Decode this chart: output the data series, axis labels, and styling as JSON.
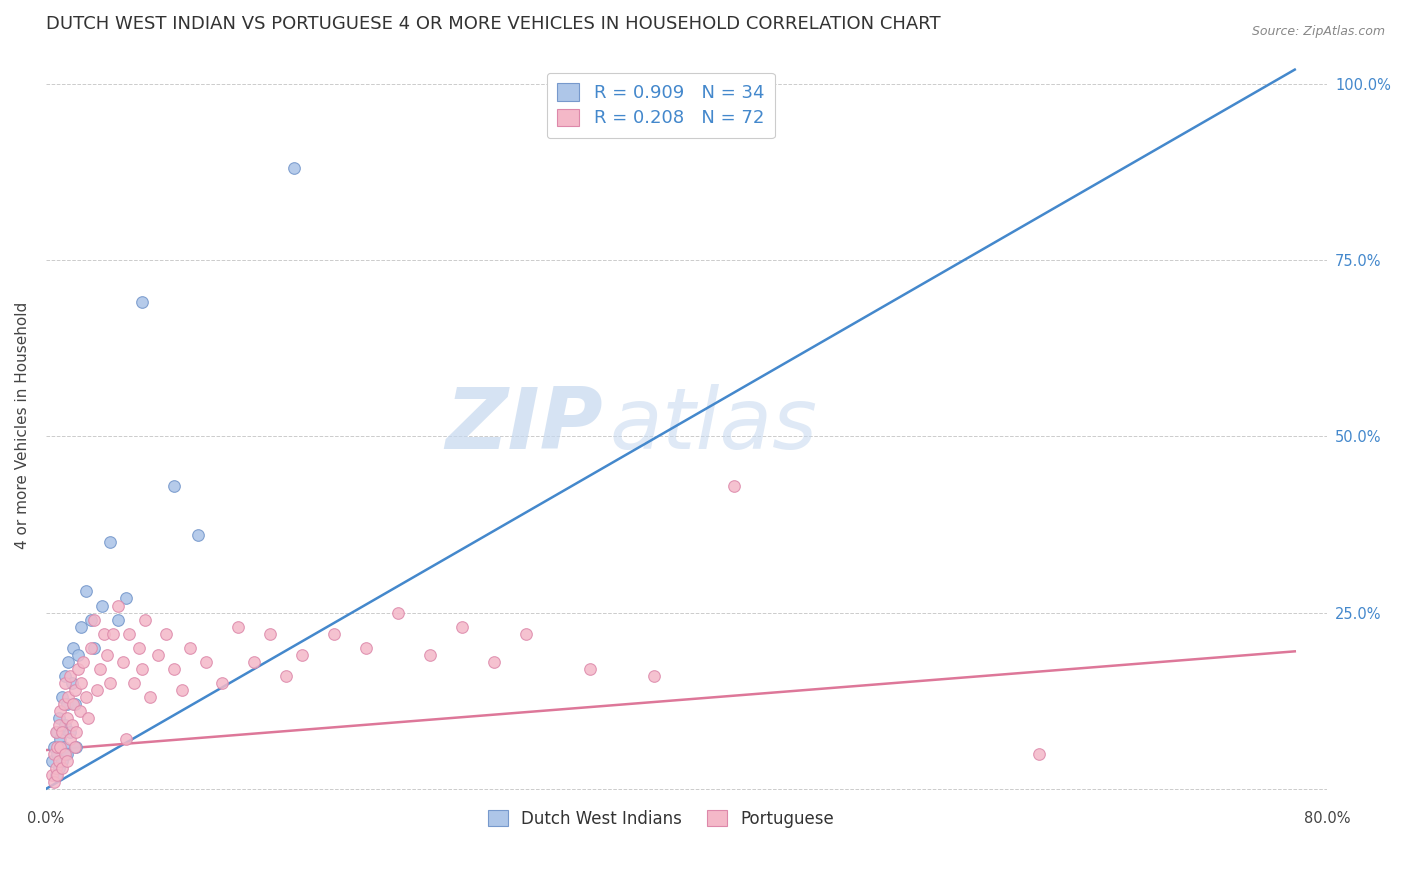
{
  "title": "DUTCH WEST INDIAN VS PORTUGUESE 4 OR MORE VEHICLES IN HOUSEHOLD CORRELATION CHART",
  "source": "Source: ZipAtlas.com",
  "ylabel": "4 or more Vehicles in Household",
  "xlim": [
    0.0,
    0.8
  ],
  "ylim": [
    -0.02,
    1.05
  ],
  "x_tick_positions": [
    0.0,
    0.1,
    0.2,
    0.3,
    0.4,
    0.5,
    0.6,
    0.7,
    0.8
  ],
  "x_tick_labels": [
    "0.0%",
    "",
    "",
    "",
    "",
    "",
    "",
    "",
    "80.0%"
  ],
  "y_tick_positions": [
    0.0,
    0.25,
    0.5,
    0.75,
    1.0
  ],
  "y_tick_labels_right": [
    "",
    "25.0%",
    "50.0%",
    "75.0%",
    "100.0%"
  ],
  "blue_line": {
    "x": [
      0.0,
      0.78
    ],
    "y": [
      0.0,
      1.02
    ]
  },
  "pink_line": {
    "x": [
      0.0,
      0.78
    ],
    "y": [
      0.055,
      0.195
    ]
  },
  "blue_scatter": {
    "x": [
      0.004,
      0.005,
      0.006,
      0.007,
      0.007,
      0.008,
      0.008,
      0.009,
      0.01,
      0.01,
      0.011,
      0.012,
      0.012,
      0.013,
      0.013,
      0.014,
      0.015,
      0.016,
      0.017,
      0.018,
      0.019,
      0.02,
      0.022,
      0.025,
      0.028,
      0.03,
      0.035,
      0.04,
      0.045,
      0.05,
      0.06,
      0.08,
      0.095,
      0.155
    ],
    "y": [
      0.04,
      0.06,
      0.02,
      0.05,
      0.08,
      0.03,
      0.1,
      0.07,
      0.04,
      0.13,
      0.06,
      0.09,
      0.16,
      0.05,
      0.12,
      0.18,
      0.08,
      0.15,
      0.2,
      0.12,
      0.06,
      0.19,
      0.23,
      0.28,
      0.24,
      0.2,
      0.26,
      0.35,
      0.24,
      0.27,
      0.69,
      0.43,
      0.36,
      0.88
    ]
  },
  "pink_scatter": {
    "x": [
      0.004,
      0.005,
      0.005,
      0.006,
      0.006,
      0.007,
      0.007,
      0.008,
      0.008,
      0.009,
      0.009,
      0.01,
      0.01,
      0.011,
      0.012,
      0.012,
      0.013,
      0.013,
      0.014,
      0.015,
      0.015,
      0.016,
      0.017,
      0.018,
      0.018,
      0.019,
      0.02,
      0.021,
      0.022,
      0.023,
      0.025,
      0.026,
      0.028,
      0.03,
      0.032,
      0.034,
      0.036,
      0.038,
      0.04,
      0.042,
      0.045,
      0.048,
      0.05,
      0.052,
      0.055,
      0.058,
      0.06,
      0.062,
      0.065,
      0.07,
      0.075,
      0.08,
      0.085,
      0.09,
      0.1,
      0.11,
      0.12,
      0.13,
      0.14,
      0.15,
      0.16,
      0.18,
      0.2,
      0.22,
      0.24,
      0.26,
      0.28,
      0.3,
      0.34,
      0.38,
      0.43,
      0.62
    ],
    "y": [
      0.02,
      0.05,
      0.01,
      0.08,
      0.03,
      0.06,
      0.02,
      0.09,
      0.04,
      0.11,
      0.06,
      0.08,
      0.03,
      0.12,
      0.05,
      0.15,
      0.1,
      0.04,
      0.13,
      0.07,
      0.16,
      0.09,
      0.12,
      0.06,
      0.14,
      0.08,
      0.17,
      0.11,
      0.15,
      0.18,
      0.13,
      0.1,
      0.2,
      0.24,
      0.14,
      0.17,
      0.22,
      0.19,
      0.15,
      0.22,
      0.26,
      0.18,
      0.07,
      0.22,
      0.15,
      0.2,
      0.17,
      0.24,
      0.13,
      0.19,
      0.22,
      0.17,
      0.14,
      0.2,
      0.18,
      0.15,
      0.23,
      0.18,
      0.22,
      0.16,
      0.19,
      0.22,
      0.2,
      0.25,
      0.19,
      0.23,
      0.18,
      0.22,
      0.17,
      0.16,
      0.43,
      0.05
    ]
  },
  "blue_line_color": "#4488cc",
  "pink_line_color": "#dd7799",
  "blue_scatter_color": "#aec6e8",
  "pink_scatter_color": "#f4b8c8",
  "blue_scatter_edge": "#7799cc",
  "pink_scatter_edge": "#dd88aa",
  "watermark_zip": "ZIP",
  "watermark_atlas": "atlas",
  "background_color": "#ffffff",
  "title_fontsize": 13,
  "axis_label_fontsize": 11,
  "tick_fontsize": 10.5,
  "scatter_size": 70,
  "legend_top": [
    {
      "label": "R = 0.909   N = 34",
      "fc": "#aec6e8",
      "ec": "#7799cc"
    },
    {
      "label": "R = 0.208   N = 72",
      "fc": "#f4b8c8",
      "ec": "#dd88aa"
    }
  ],
  "legend_bottom": [
    {
      "label": "Dutch West Indians",
      "fc": "#aec6e8",
      "ec": "#7799cc"
    },
    {
      "label": "Portuguese",
      "fc": "#f4b8c8",
      "ec": "#dd88aa"
    }
  ]
}
